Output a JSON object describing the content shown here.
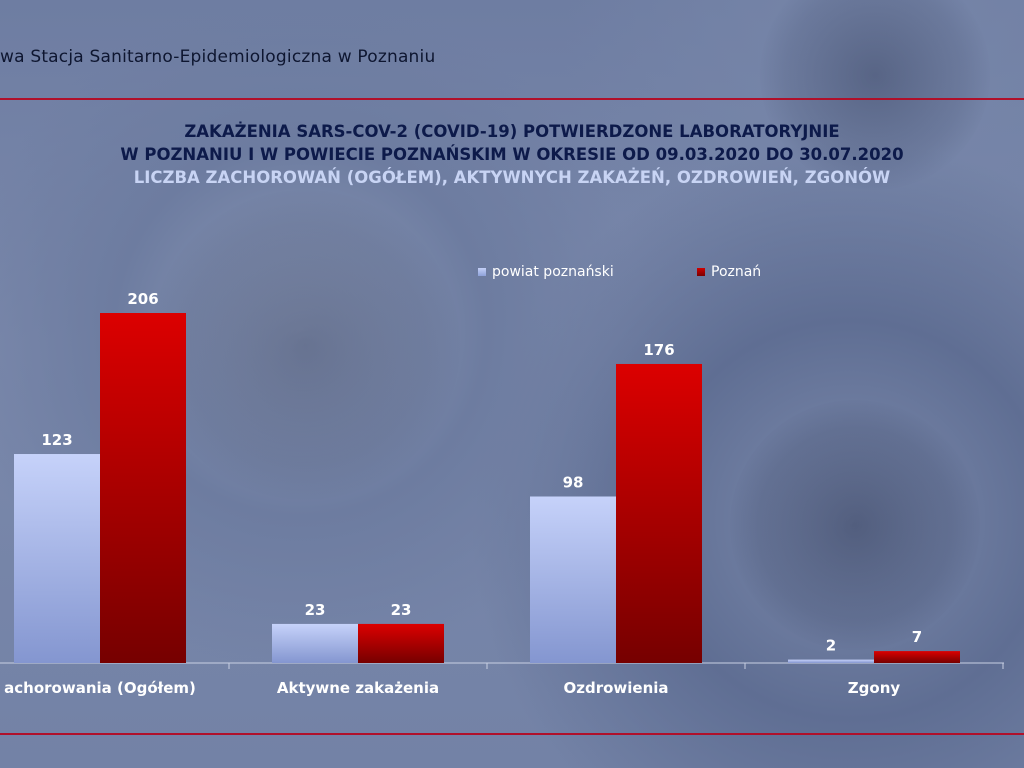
{
  "header": {
    "organization": "wa Stacja Sanitarno-Epidemiologiczna w Poznaniu"
  },
  "chart_data": {
    "type": "bar",
    "title": "ZAKAŻENIA SARS-COV-2 (COVID-19) POTWIERDZONE LABORATORYJNIE",
    "title_line2": "W POZNANIU I W POWIECIE POZNAŃSKIM W OKRESIE OD 09.03.2020 DO 30.07.2020",
    "subtitle": "LICZBA ZACHOROWAŃ (OGÓŁEM), AKTYWNYCH ZAKAŻEŃ, OZDROWIEŃ, ZGONÓW",
    "categories": [
      "achorowania (Ogółem)",
      "Aktywne zakażenia",
      "Ozdrowienia",
      "Zgony"
    ],
    "series": [
      {
        "name": "powiat poznański",
        "values": [
          123,
          23,
          98,
          2
        ],
        "color": "#a9b9ec"
      },
      {
        "name": "Poznań",
        "values": [
          206,
          23,
          176,
          7
        ],
        "color": "#c80000"
      }
    ],
    "data_labels": true,
    "ylim": [
      0,
      206
    ],
    "grid": false,
    "legend_position": "top-center"
  }
}
